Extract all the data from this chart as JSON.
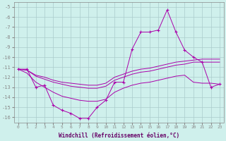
{
  "xlabel": "Windchill (Refroidissement éolien,°C)",
  "background_color": "#cff0ec",
  "grid_color": "#aacccc",
  "line_color": "#aa00aa",
  "hours": [
    0,
    1,
    2,
    3,
    4,
    5,
    6,
    7,
    8,
    9,
    10,
    11,
    12,
    13,
    14,
    15,
    16,
    17,
    18,
    19,
    20,
    21,
    22,
    23
  ],
  "windchill": [
    -11.2,
    -11.2,
    -13.0,
    -12.8,
    -14.8,
    -15.3,
    -15.6,
    -16.1,
    -16.1,
    -15.0,
    -14.3,
    -12.5,
    -12.5,
    -9.2,
    -7.5,
    -7.5,
    -7.3,
    -5.3,
    -7.5,
    -9.3,
    -10.0,
    -10.5,
    -13.0,
    -12.7
  ],
  "line2": [
    -11.2,
    -11.3,
    -11.8,
    -12.0,
    -12.3,
    -12.5,
    -12.6,
    -12.7,
    -12.8,
    -12.8,
    -12.6,
    -12.0,
    -11.7,
    -11.4,
    -11.2,
    -11.1,
    -10.9,
    -10.7,
    -10.5,
    -10.4,
    -10.3,
    -10.2,
    -10.2,
    -10.2
  ],
  "line3": [
    -11.2,
    -11.3,
    -11.9,
    -12.2,
    -12.5,
    -12.7,
    -12.9,
    -13.0,
    -13.1,
    -13.1,
    -12.9,
    -12.3,
    -12.0,
    -11.7,
    -11.5,
    -11.4,
    -11.2,
    -11.0,
    -10.8,
    -10.7,
    -10.5,
    -10.5,
    -10.5,
    -10.5
  ],
  "line4": [
    -11.2,
    -11.6,
    -12.5,
    -13.0,
    -13.5,
    -13.9,
    -14.1,
    -14.3,
    -14.4,
    -14.4,
    -14.2,
    -13.5,
    -13.1,
    -12.8,
    -12.6,
    -12.5,
    -12.3,
    -12.1,
    -11.9,
    -11.8,
    -12.5,
    -12.6,
    -12.6,
    -12.7
  ],
  "ylim": [
    -16.5,
    -4.5
  ],
  "yticks": [
    -16,
    -15,
    -14,
    -13,
    -12,
    -11,
    -10,
    -9,
    -8,
    -7,
    -6,
    -5
  ],
  "xlim": [
    -0.5,
    23.5
  ],
  "xticks": [
    0,
    1,
    2,
    3,
    4,
    5,
    6,
    7,
    8,
    9,
    10,
    11,
    12,
    13,
    14,
    15,
    16,
    17,
    18,
    19,
    20,
    21,
    22,
    23
  ]
}
